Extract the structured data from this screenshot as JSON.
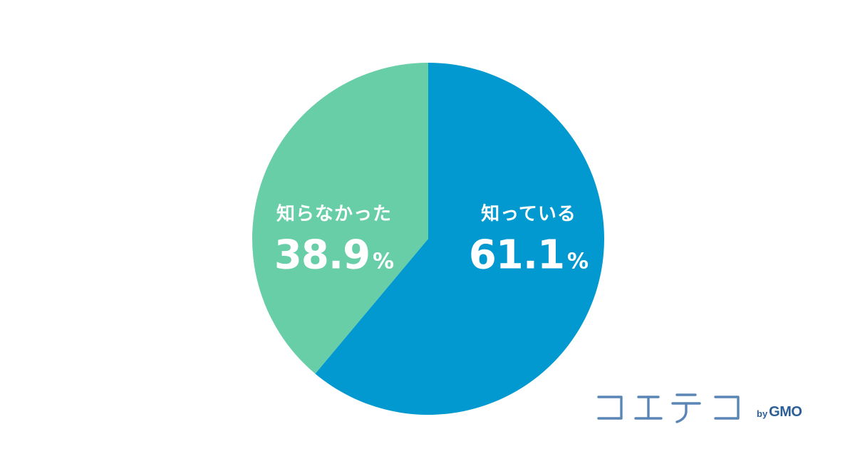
{
  "chart_data": {
    "type": "pie",
    "start_angle": "12 o'clock",
    "direction": "clockwise",
    "slices": [
      {
        "label": "知っている",
        "value": 61.1,
        "display_value": "61.1",
        "unit": "%",
        "color": "#0299d0"
      },
      {
        "label": "知らなかった",
        "value": 38.9,
        "display_value": "38.9",
        "unit": "%",
        "color": "#68cea8"
      }
    ],
    "label_color": "#ffffff",
    "background": "#ffffff"
  },
  "logo": {
    "by_text": "by",
    "brand_text": "GMO",
    "color": "#2c5f98",
    "accent_color": "#5a86b6"
  }
}
